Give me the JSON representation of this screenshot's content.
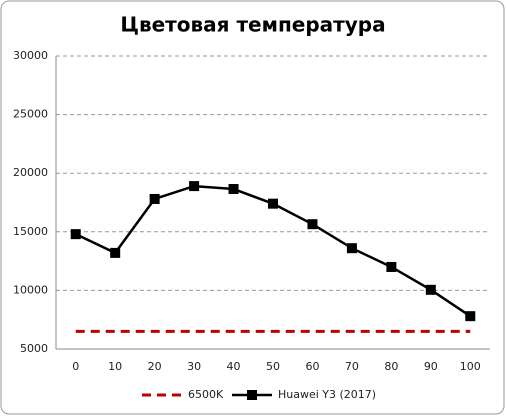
{
  "chart_data": {
    "type": "line",
    "title": "Цветовая температура",
    "categories": [
      "0",
      "10",
      "20",
      "30",
      "40",
      "50",
      "60",
      "70",
      "80",
      "90",
      "100"
    ],
    "series": [
      {
        "name": "6500K",
        "color": "#c00000",
        "style": "dashed",
        "values": [
          6500,
          6500,
          6500,
          6500,
          6500,
          6500,
          6500,
          6500,
          6500,
          6500,
          6500
        ]
      },
      {
        "name": "Huawei Y3 (2017)",
        "color": "#000000",
        "style": "solid",
        "marker": "square",
        "values": [
          14800,
          13200,
          17800,
          18900,
          18650,
          17400,
          15650,
          13600,
          12000,
          10050,
          7800
        ]
      }
    ],
    "ylim": [
      5000,
      30000
    ],
    "yticks": [
      5000,
      10000,
      15000,
      20000,
      25000,
      30000
    ],
    "grid": true,
    "legend": "bottom"
  }
}
